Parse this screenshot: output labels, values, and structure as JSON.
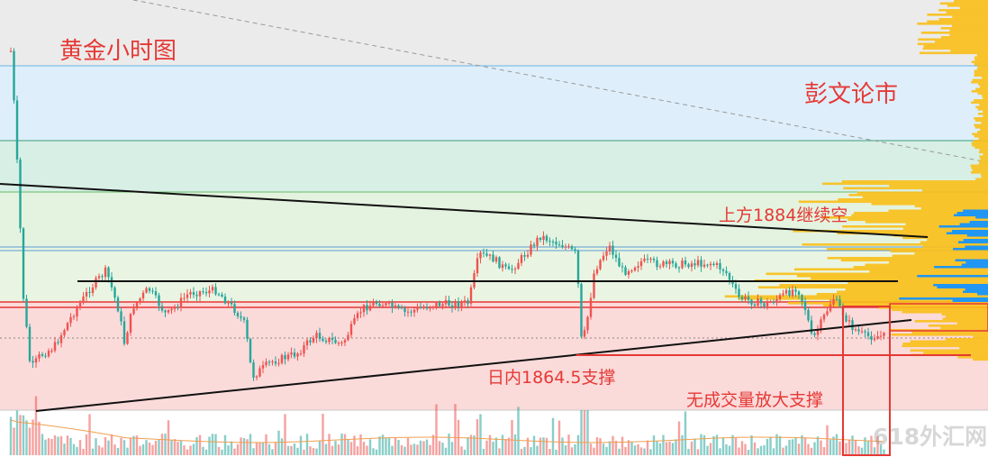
{
  "chart_data": {
    "type": "candlestick",
    "title": "黄金小时图",
    "subtitle": "彭文论市",
    "annotations": [
      {
        "text": "上方1884继续空",
        "price": 1884
      },
      {
        "text": "日内1864.5支撑",
        "price": 1864.5
      },
      {
        "text": "无成交量放大支撑"
      }
    ],
    "price_range": [
      1860,
      1900
    ],
    "resistance": 1884,
    "support": 1864.5,
    "colors": {
      "up": "#ef5350",
      "down": "#26a69a",
      "profile_yellow": "#f9bf18",
      "profile_blue": "#2196f3",
      "annotation": "#e53935"
    }
  },
  "watermark": "618外汇网"
}
